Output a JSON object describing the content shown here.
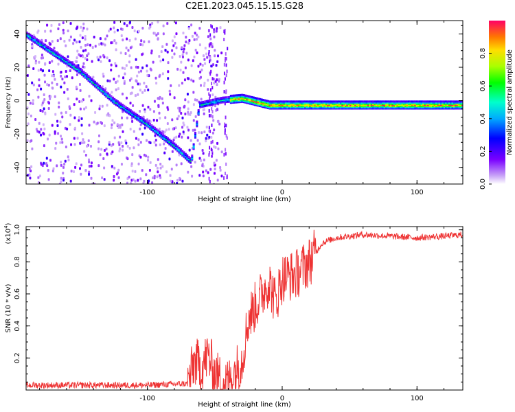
{
  "title": "C2E1.2023.045.15.15.G28",
  "chart_data": [
    {
      "type": "heatmap",
      "xlabel": "Height of straight line (km)",
      "ylabel": "Frequency (Hz)",
      "xlim": [
        -190,
        134
      ],
      "ylim": [
        -50,
        48
      ],
      "x_ticks": [
        -100,
        0,
        100
      ],
      "y_ticks": [
        -40,
        -20,
        0,
        20,
        40
      ],
      "x_tick_labels": [
        "-100",
        "0",
        "100"
      ],
      "y_tick_labels": [
        "-40",
        "-20",
        "0",
        "20",
        "40"
      ],
      "colorbar": {
        "label": "Normalized spectral amplitude",
        "range": [
          0,
          1
        ],
        "ticks": [
          0.0,
          0.2,
          0.4,
          0.6,
          0.8
        ],
        "tick_labels": [
          "0.0",
          "0.2",
          "0.4",
          "0.6",
          "0.8"
        ]
      },
      "ridge": [
        {
          "x": -190,
          "y": 40
        },
        {
          "x": -150,
          "y": 18
        },
        {
          "x": -125,
          "y": 0
        },
        {
          "x": -100,
          "y": -14
        },
        {
          "x": -80,
          "y": -27
        },
        {
          "x": -68,
          "y": -36
        },
        {
          "x": -62,
          "y": -2
        },
        {
          "x": -45,
          "y": 1
        },
        {
          "x": -30,
          "y": 2
        },
        {
          "x": -10,
          "y": -2
        },
        {
          "x": 10,
          "y": -2
        },
        {
          "x": 50,
          "y": -2
        },
        {
          "x": 100,
          "y": -2
        },
        {
          "x": 134,
          "y": -2
        }
      ]
    },
    {
      "type": "line",
      "xlabel": "Height of straight line (km)",
      "ylabel": "SNR (10 * v/v)",
      "y_exponent": "(x10",
      "y_exponent_power": "4",
      "y_exponent_close": ")",
      "xlim": [
        -190,
        134
      ],
      "ylim": [
        0,
        1.02
      ],
      "x_ticks": [
        -100,
        0,
        100
      ],
      "y_ticks": [
        0.2,
        0.4,
        0.6,
        0.8,
        1.0
      ],
      "x_tick_labels": [
        "-100",
        "0",
        "100"
      ],
      "y_tick_labels": [
        "0.2",
        "0.4",
        "0.6",
        "0.8",
        "1.0"
      ],
      "color": "#ee3333",
      "series": [
        {
          "x": [
            -190,
            -150,
            -100,
            -70,
            -65,
            -60,
            -55,
            -50,
            -45,
            -40,
            -35,
            -30,
            -25,
            -20,
            -15,
            -10,
            -5,
            0,
            10,
            20,
            30,
            40,
            60,
            80,
            100,
            120,
            134
          ],
          "y": [
            0.03,
            0.03,
            0.03,
            0.04,
            0.18,
            0.14,
            0.22,
            0.1,
            0.06,
            0.04,
            0.12,
            0.18,
            0.45,
            0.52,
            0.6,
            0.68,
            0.55,
            0.7,
            0.72,
            0.8,
            0.92,
            0.95,
            0.97,
            0.96,
            0.95,
            0.96,
            0.97
          ]
        }
      ]
    }
  ]
}
